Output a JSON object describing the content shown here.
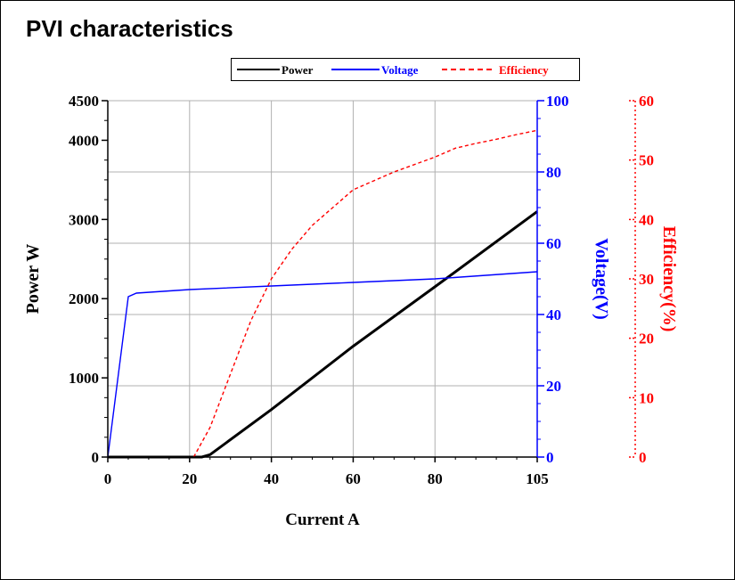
{
  "title": "PVI characteristics",
  "chart_data": {
    "type": "line",
    "xlabel": "Current A",
    "xlim": [
      0,
      105
    ],
    "xticks": [
      0,
      20,
      40,
      60,
      80,
      105
    ],
    "grid": true,
    "legend_placement": "top",
    "axes": {
      "power": {
        "label": "Power W",
        "lim": [
          0,
          4500
        ],
        "ticks": [
          0,
          1000,
          2000,
          3000,
          4000,
          4500
        ],
        "color": "#000000"
      },
      "voltage": {
        "label": "Voltage(V)",
        "lim": [
          0,
          100
        ],
        "ticks": [
          0,
          20,
          40,
          60,
          80,
          100
        ],
        "color": "#0000ff"
      },
      "efficiency": {
        "label": "Efficiency(%)",
        "lim": [
          0,
          60
        ],
        "ticks": [
          0,
          10,
          20,
          30,
          40,
          50,
          60
        ],
        "color": "#ff0000"
      }
    },
    "series": [
      {
        "name": "Power",
        "axis": "power",
        "color": "#000000",
        "dash": "solid",
        "x": [
          0,
          23,
          25,
          40,
          60,
          80,
          105
        ],
        "y": [
          0,
          0,
          30,
          600,
          1400,
          2150,
          3100
        ]
      },
      {
        "name": "Voltage",
        "axis": "voltage",
        "color": "#0000ff",
        "dash": "solid",
        "x": [
          0,
          5,
          7,
          20,
          40,
          60,
          80,
          105
        ],
        "y": [
          0,
          45,
          46,
          47,
          48,
          49,
          50,
          52
        ]
      },
      {
        "name": "Efficiency",
        "axis": "efficiency",
        "color": "#ff0000",
        "dash": "dashed",
        "x": [
          21,
          25,
          30,
          35,
          40,
          45,
          50,
          55,
          60,
          70,
          80,
          85,
          90,
          95,
          100,
          105
        ],
        "y": [
          0,
          5,
          14,
          23,
          30,
          35,
          39,
          42,
          45,
          48,
          50.5,
          52,
          52.8,
          53.5,
          54.3,
          55
        ]
      }
    ]
  }
}
